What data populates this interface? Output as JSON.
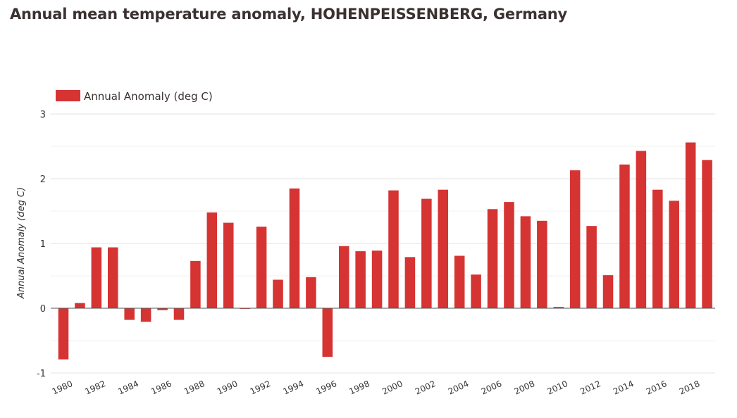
{
  "chart_data": {
    "type": "bar",
    "title": "Annual mean temperature anomaly,  HOHENPEISSENBERG, Germany",
    "xlabel": "",
    "ylabel": "Annual Anomaly (deg C)",
    "ylim": [
      -1,
      3
    ],
    "yticks": [
      -1,
      0,
      1,
      2,
      3
    ],
    "grid": true,
    "legend_position": "top-left",
    "color": "#d63333",
    "x_tick_labels": [
      "1980",
      "1982",
      "1984",
      "1986",
      "1988",
      "1990",
      "1992",
      "1994",
      "1996",
      "1998",
      "2000",
      "2002",
      "2004",
      "2006",
      "2008",
      "2010",
      "2012",
      "2014",
      "2016",
      "2018"
    ],
    "categories": [
      "1980",
      "1981",
      "1982",
      "1983",
      "1984",
      "1985",
      "1986",
      "1987",
      "1988",
      "1989",
      "1990",
      "1991",
      "1992",
      "1993",
      "1994",
      "1995",
      "1996",
      "1997",
      "1998",
      "1999",
      "2000",
      "2001",
      "2002",
      "2003",
      "2004",
      "2005",
      "2006",
      "2007",
      "2008",
      "2009",
      "2010",
      "2011",
      "2012",
      "2013",
      "2014",
      "2015",
      "2016",
      "2017",
      "2018",
      "2019"
    ],
    "series": [
      {
        "name": "Annual Anomaly (deg C)",
        "values": [
          -0.79,
          0.08,
          0.94,
          0.94,
          -0.18,
          -0.21,
          -0.03,
          -0.18,
          0.73,
          1.48,
          1.32,
          -0.01,
          1.26,
          0.44,
          1.85,
          0.48,
          -0.75,
          0.96,
          0.88,
          0.89,
          1.82,
          0.79,
          1.69,
          1.83,
          0.81,
          0.52,
          1.53,
          1.64,
          1.42,
          1.35,
          0.02,
          2.13,
          1.27,
          0.51,
          2.22,
          2.43,
          1.83,
          1.66,
          2.56,
          2.29
        ]
      }
    ]
  }
}
